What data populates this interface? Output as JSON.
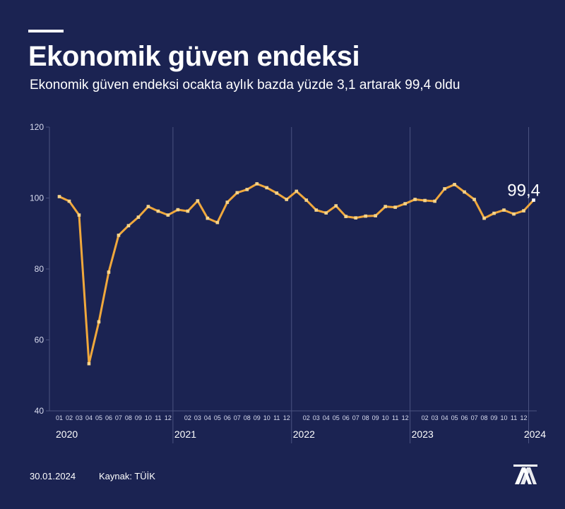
{
  "header": {
    "title": "Ekonomik güven endeksi",
    "subtitle": "Ekonomik güven endeksi ocakta aylık bazda yüzde 3,1 artarak 99,4 oldu"
  },
  "footer": {
    "date": "30.01.2024",
    "source": "Kaynak: TÜİK",
    "logo_text": "AA"
  },
  "colors": {
    "background": "#1b2352",
    "line": "#f0a83c",
    "marker": "#f5d38a",
    "grid": "#4b5380",
    "text": "#ffffff"
  },
  "chart_data": {
    "type": "line",
    "title": "Ekonomik güven endeksi",
    "ylim": [
      40,
      120
    ],
    "yticks": [
      40,
      60,
      80,
      100,
      120
    ],
    "month_ticks": [
      "01",
      "02",
      "03",
      "04",
      "05",
      "06",
      "07",
      "08",
      "09",
      "10",
      "11",
      "12"
    ],
    "years": [
      "2020",
      "2021",
      "2022",
      "2023",
      "2024"
    ],
    "last_value_label": "99,4",
    "series": [
      {
        "name": "Ekonomik güven endeksi",
        "values": [
          100.4,
          99.1,
          95.2,
          53.3,
          65.1,
          79.1,
          89.5,
          92.2,
          94.6,
          97.6,
          96.3,
          95.2,
          96.7,
          96.3,
          99.2,
          94.3,
          93.1,
          98.8,
          101.5,
          102.4,
          104.0,
          102.9,
          101.4,
          99.6,
          101.9,
          99.4,
          96.6,
          95.8,
          97.8,
          94.8,
          94.4,
          94.9,
          95.0,
          97.6,
          97.4,
          98.4,
          99.6,
          99.3,
          99.1,
          102.6,
          103.8,
          101.7,
          99.6,
          94.3,
          95.7,
          96.6,
          95.5,
          96.4,
          99.4
        ]
      }
    ]
  }
}
